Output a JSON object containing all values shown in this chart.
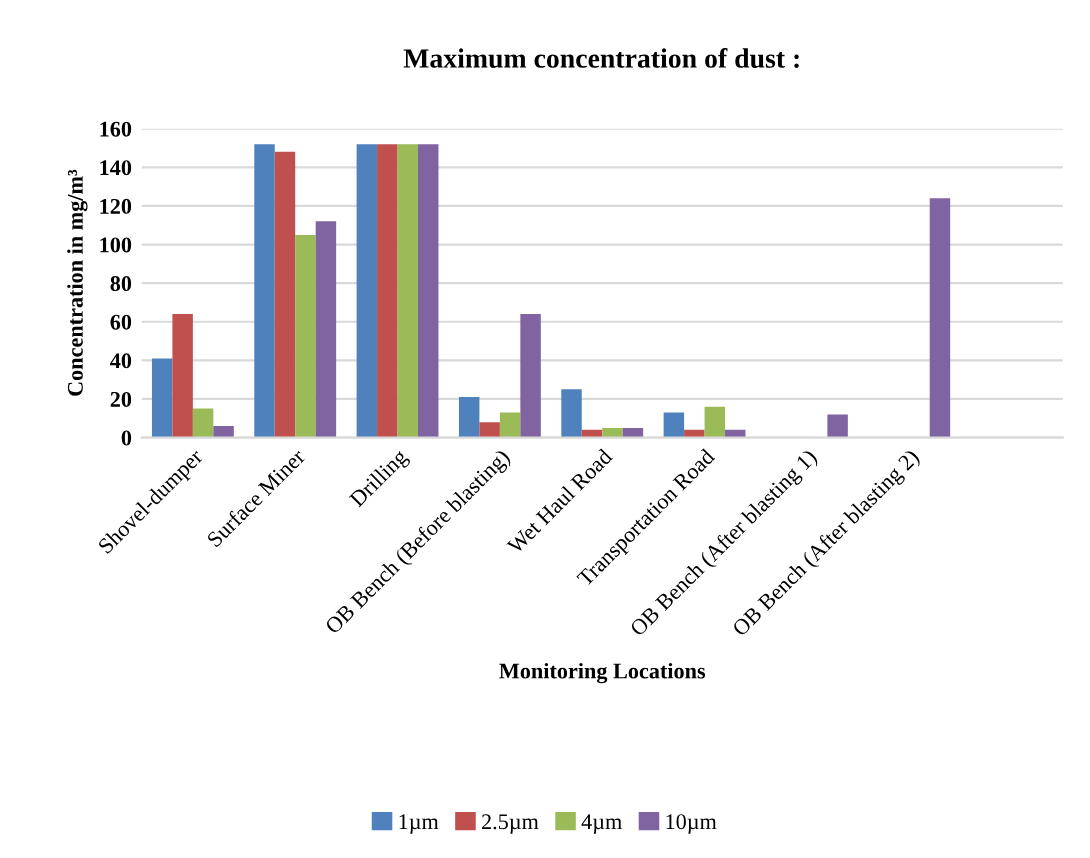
{
  "chart_data": {
    "type": "bar",
    "title": "Maximum concentration of dust :",
    "xlabel": "Monitoring Locations",
    "ylabel": "Concentration in mg/m³",
    "categories": [
      "Shovel-dumper",
      "Surface Miner",
      "Drilling",
      "OB Bench (Before blasting)",
      "Wet Haul Road",
      "Transportation Road",
      "OB Bench (After blasting 1)",
      "OB Bench (After blasting 2)",
      null
    ],
    "series": [
      {
        "name": "1µm",
        "color": "#4f81bd",
        "values": [
          41,
          152,
          152,
          21,
          25,
          13,
          null,
          null,
          null
        ]
      },
      {
        "name": "2.5µm",
        "color": "#c0504d",
        "values": [
          64,
          148,
          152,
          8,
          4,
          4,
          null,
          null,
          null
        ]
      },
      {
        "name": "4µm",
        "color": "#9bbb59",
        "values": [
          15,
          105,
          152,
          13,
          5,
          16,
          null,
          null,
          null
        ]
      },
      {
        "name": "10µm",
        "color": "#8064a2",
        "values": [
          6,
          112,
          152,
          64,
          5,
          4,
          12,
          124,
          null
        ]
      }
    ],
    "ylim": [
      0,
      160
    ],
    "yticks": [
      0,
      20,
      40,
      60,
      80,
      100,
      120,
      140,
      160
    ],
    "grid": "y",
    "legend": "bottom"
  }
}
